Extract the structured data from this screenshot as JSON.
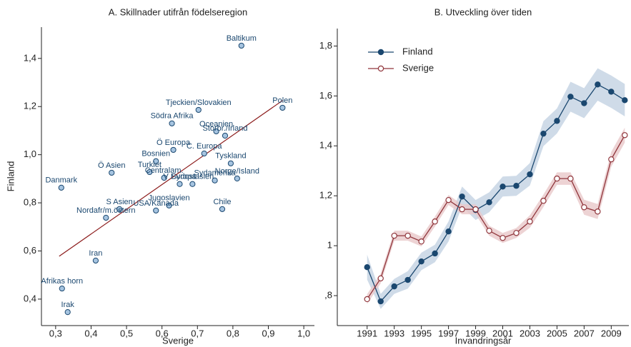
{
  "chart_data": [
    {
      "type": "scatter",
      "title": "A. Skillnader utifrån födelseregion",
      "x_label": "Sverige",
      "y_label": "Finland",
      "labels": [
        "Baltikum",
        "Polen",
        "Tjeckien/Slovakien",
        "Södra Afrika",
        "Oceanien",
        "Storbr./Irland",
        "C. Europa",
        "Ö Europa",
        "Bosnien",
        "Tyskland",
        "Ö Asien",
        "Turkiet",
        "Centralam.",
        "Danmark",
        "V Europa",
        "Sydamerika",
        "Norge/Island",
        "Sydostasien",
        "Jugoslavien",
        "S Asien",
        "Chile",
        "Nordafr/m.östern",
        "USA/Kanada",
        "Iran",
        "Afrikas horn",
        "Irak"
      ],
      "x": [
        0.824,
        0.94,
        0.703,
        0.628,
        0.753,
        0.778,
        0.719,
        0.632,
        0.583,
        0.794,
        0.458,
        0.565,
        0.606,
        0.316,
        0.65,
        0.749,
        0.812,
        0.686,
        0.62,
        0.48,
        0.77,
        0.442,
        0.583,
        0.413,
        0.318,
        0.334
      ],
      "y": [
        1.453,
        1.195,
        1.186,
        1.13,
        1.097,
        1.079,
        1.005,
        1.02,
        0.973,
        0.964,
        0.925,
        0.928,
        0.904,
        0.863,
        0.878,
        0.893,
        0.901,
        0.878,
        0.789,
        0.774,
        0.774,
        0.738,
        0.768,
        0.56,
        0.444,
        0.346
      ],
      "color": "#1a476f",
      "point_fill": "#a6c4e0",
      "fit": {
        "x": [
          0.31,
          0.94
        ],
        "y": [
          0.578,
          1.225
        ],
        "color": "#8b1a1a"
      },
      "xlim": [
        0.26,
        1.03
      ],
      "ylim": [
        0.29,
        1.53
      ],
      "xticks": [
        {
          "value": 0.3,
          "label": "0,3"
        },
        {
          "value": 0.4,
          "label": "0,4"
        },
        {
          "value": 0.5,
          "label": "0,5"
        },
        {
          "value": 0.6,
          "label": "0,6"
        },
        {
          "value": 0.7,
          "label": "0,7"
        },
        {
          "value": 0.8,
          "label": "0,8"
        },
        {
          "value": 0.9,
          "label": "0,9"
        },
        {
          "value": 1.0,
          "label": "1,0"
        }
      ],
      "yticks": [
        {
          "value": 0.4,
          "label": "0,4"
        },
        {
          "value": 0.6,
          "label": "0,6"
        },
        {
          "value": 0.8,
          "label": "0,8"
        },
        {
          "value": 1.0,
          "label": "1,0"
        },
        {
          "value": 1.2,
          "label": "1,2"
        },
        {
          "value": 1.4,
          "label": "1,4"
        }
      ]
    },
    {
      "type": "line",
      "title": "B. Utveckling över tiden",
      "x_label": "Invandringsår",
      "x": [
        1991,
        1992,
        1993,
        1994,
        1995,
        1996,
        1997,
        1998,
        1999,
        2000,
        2001,
        2002,
        2003,
        2004,
        2005,
        2006,
        2007,
        2008,
        2009,
        2010
      ],
      "series": [
        {
          "name": "Finland",
          "color": "#1a476f",
          "band_color": "#c3d2e2",
          "marker": "filled",
          "values": [
            0.914,
            0.777,
            0.837,
            0.863,
            0.937,
            0.969,
            1.057,
            1.197,
            1.143,
            1.174,
            1.237,
            1.24,
            1.286,
            1.449,
            1.5,
            1.597,
            1.571,
            1.646,
            1.617,
            1.583
          ],
          "errors": [
            0.05,
            0.03,
            0.03,
            0.035,
            0.035,
            0.035,
            0.04,
            0.04,
            0.04,
            0.04,
            0.04,
            0.04,
            0.045,
            0.05,
            0.05,
            0.06,
            0.06,
            0.065,
            0.065,
            0.065
          ]
        },
        {
          "name": "Sverige",
          "color": "#90353b",
          "band_color": "#e8c8c9",
          "marker": "hollow",
          "values": [
            0.786,
            0.869,
            1.04,
            1.04,
            1.017,
            1.097,
            1.183,
            1.146,
            1.146,
            1.06,
            1.031,
            1.051,
            1.097,
            1.18,
            1.269,
            1.269,
            1.154,
            1.137,
            1.346,
            1.443
          ],
          "errors": [
            0.02,
            0.02,
            0.02,
            0.02,
            0.02,
            0.02,
            0.02,
            0.02,
            0.02,
            0.02,
            0.02,
            0.02,
            0.025,
            0.025,
            0.025,
            0.025,
            0.03,
            0.03,
            0.03,
            0.03
          ]
        }
      ],
      "legend": "top-left",
      "xlim": [
        1988.8,
        2010.3
      ],
      "ylim": [
        0.68,
        1.87
      ],
      "xticks": [
        1991,
        1993,
        1995,
        1997,
        1999,
        2001,
        2003,
        2005,
        2007,
        2009
      ],
      "yticks": [
        {
          "value": 0.8,
          "label": ",8"
        },
        1,
        {
          "value": 1.2,
          "label": "1,2"
        },
        {
          "value": 1.4,
          "label": "1,4"
        },
        {
          "value": 1.6,
          "label": "1,6"
        },
        {
          "value": 1.8,
          "label": "1,8"
        }
      ]
    }
  ]
}
